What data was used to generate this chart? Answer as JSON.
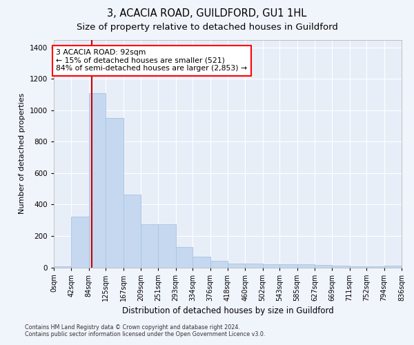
{
  "title": "3, ACACIA ROAD, GUILDFORD, GU1 1HL",
  "subtitle": "Size of property relative to detached houses in Guildford",
  "xlabel": "Distribution of detached houses by size in Guildford",
  "ylabel": "Number of detached properties",
  "footer_line1": "Contains HM Land Registry data © Crown copyright and database right 2024.",
  "footer_line2": "Contains public sector information licensed under the Open Government Licence v3.0.",
  "annotation_title": "3 ACACIA ROAD: 92sqm",
  "annotation_line1": "← 15% of detached houses are smaller (521)",
  "annotation_line2": "84% of semi-detached houses are larger (2,853) →",
  "bar_color": "#c5d8f0",
  "bar_edge_color": "#a8c4e0",
  "redline_color": "#cc0000",
  "redline_x": 92,
  "bin_edges": [
    0,
    42,
    84,
    125,
    167,
    209,
    251,
    293,
    334,
    376,
    418,
    460,
    502,
    543,
    585,
    627,
    669,
    711,
    752,
    794,
    836
  ],
  "bar_heights": [
    8,
    325,
    1110,
    950,
    465,
    275,
    275,
    130,
    70,
    40,
    25,
    25,
    20,
    20,
    20,
    15,
    12,
    5,
    5,
    12
  ],
  "ylim": [
    0,
    1450
  ],
  "yticks": [
    0,
    200,
    400,
    600,
    800,
    1000,
    1200,
    1400
  ],
  "background_color": "#f0f4fb",
  "plot_bg_color": "#e8eef8",
  "grid_color": "#ffffff",
  "title_fontsize": 10.5,
  "subtitle_fontsize": 9.5,
  "axis_label_fontsize": 8.5,
  "tick_fontsize": 7,
  "ylabel_fontsize": 8,
  "tick_labels": [
    "0sqm",
    "42sqm",
    "84sqm",
    "125sqm",
    "167sqm",
    "209sqm",
    "251sqm",
    "293sqm",
    "334sqm",
    "376sqm",
    "418sqm",
    "460sqm",
    "502sqm",
    "543sqm",
    "585sqm",
    "627sqm",
    "669sqm",
    "711sqm",
    "752sqm",
    "794sqm",
    "836sqm"
  ]
}
